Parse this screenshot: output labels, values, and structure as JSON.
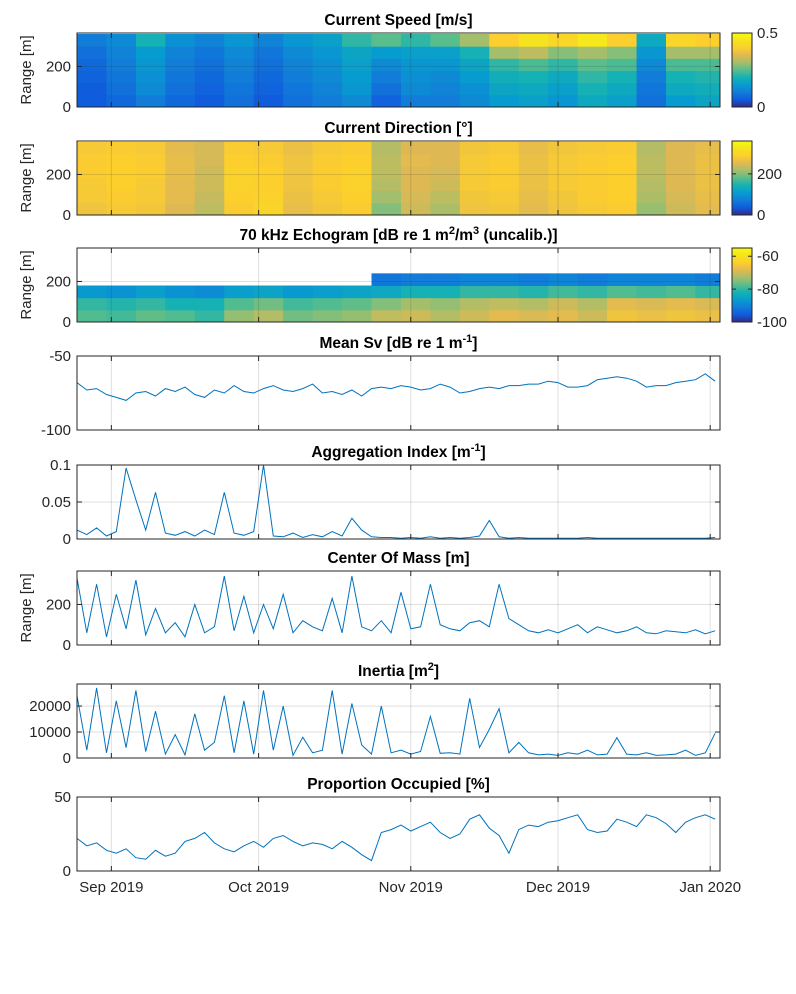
{
  "chart_data": {
    "type": "multi-panel time series",
    "xlim": [
      "2019-08-25",
      "2020-01-03"
    ],
    "xticks": [
      {
        "date": "2019-09-01",
        "label": "Sep 2019"
      },
      {
        "date": "2019-10-01",
        "label": "Oct 2019"
      },
      {
        "date": "2019-11-01",
        "label": "Nov 2019"
      },
      {
        "date": "2019-12-01",
        "label": "Dec 2019"
      },
      {
        "date": "2020-01-01",
        "label": "Jan 2020"
      }
    ],
    "line_color": "#0072bd",
    "colormap": "parula",
    "grid": true,
    "x_dates": [
      "2019-08-25",
      "2019-08-27",
      "2019-08-29",
      "2019-08-31",
      "2019-09-02",
      "2019-09-04",
      "2019-09-06",
      "2019-09-08",
      "2019-09-10",
      "2019-09-12",
      "2019-09-14",
      "2019-09-16",
      "2019-09-18",
      "2019-09-20",
      "2019-09-22",
      "2019-09-24",
      "2019-09-26",
      "2019-09-28",
      "2019-09-30",
      "2019-10-02",
      "2019-10-04",
      "2019-10-06",
      "2019-10-08",
      "2019-10-10",
      "2019-10-12",
      "2019-10-14",
      "2019-10-16",
      "2019-10-18",
      "2019-10-20",
      "2019-10-22",
      "2019-10-24",
      "2019-10-26",
      "2019-10-28",
      "2019-10-30",
      "2019-11-01",
      "2019-11-03",
      "2019-11-05",
      "2019-11-07",
      "2019-11-09",
      "2019-11-11",
      "2019-11-13",
      "2019-11-15",
      "2019-11-17",
      "2019-11-19",
      "2019-11-21",
      "2019-11-23",
      "2019-11-25",
      "2019-11-27",
      "2019-11-29",
      "2019-12-01",
      "2019-12-03",
      "2019-12-05",
      "2019-12-07",
      "2019-12-09",
      "2019-12-11",
      "2019-12-13",
      "2019-12-15",
      "2019-12-17",
      "2019-12-19",
      "2019-12-21",
      "2019-12-23",
      "2019-12-25",
      "2019-12-27",
      "2019-12-29",
      "2019-12-31",
      "2020-01-02"
    ],
    "heatmap_dates": [
      "2019-08-25",
      "2019-08-31",
      "2019-09-06",
      "2019-09-12",
      "2019-09-18",
      "2019-09-24",
      "2019-09-30",
      "2019-10-06",
      "2019-10-12",
      "2019-10-18",
      "2019-10-24",
      "2019-10-30",
      "2019-11-05",
      "2019-11-11",
      "2019-11-17",
      "2019-11-23",
      "2019-11-29",
      "2019-12-05",
      "2019-12-11",
      "2019-12-17",
      "2019-12-23",
      "2019-12-29"
    ],
    "range_bins": [
      30,
      90,
      150,
      210,
      270,
      330
    ],
    "panels": [
      {
        "type": "heatmap",
        "title": "Current Speed [m/s]",
        "ylabel": "Range [m]",
        "ylim": [
          0,
          365
        ],
        "yticks": [
          0,
          200
        ],
        "clim": [
          0,
          0.5
        ],
        "cticks": [
          0,
          0.5
        ],
        "ctick_labels": [
          "0",
          "0.5"
        ],
        "values": [
          [
            0.05,
            0.05,
            0.06,
            0.07,
            0.08,
            0.1
          ],
          [
            0.07,
            0.08,
            0.09,
            0.1,
            0.11,
            0.12
          ],
          [
            0.1,
            0.12,
            0.13,
            0.14,
            0.15,
            0.2
          ],
          [
            0.07,
            0.08,
            0.09,
            0.1,
            0.11,
            0.13
          ],
          [
            0.05,
            0.06,
            0.07,
            0.08,
            0.09,
            0.11
          ],
          [
            0.08,
            0.09,
            0.1,
            0.11,
            0.12,
            0.14
          ],
          [
            0.05,
            0.06,
            0.07,
            0.08,
            0.09,
            0.11
          ],
          [
            0.08,
            0.09,
            0.1,
            0.11,
            0.12,
            0.14
          ],
          [
            0.1,
            0.11,
            0.12,
            0.13,
            0.14,
            0.16
          ],
          [
            0.12,
            0.14,
            0.15,
            0.16,
            0.17,
            0.22
          ],
          [
            0.06,
            0.08,
            0.1,
            0.12,
            0.15,
            0.25
          ],
          [
            0.1,
            0.12,
            0.13,
            0.14,
            0.16,
            0.22
          ],
          [
            0.1,
            0.11,
            0.12,
            0.14,
            0.16,
            0.25
          ],
          [
            0.12,
            0.13,
            0.15,
            0.17,
            0.2,
            0.3
          ],
          [
            0.15,
            0.17,
            0.19,
            0.22,
            0.3,
            0.4
          ],
          [
            0.16,
            0.18,
            0.2,
            0.24,
            0.32,
            0.45
          ],
          [
            0.14,
            0.16,
            0.18,
            0.22,
            0.28,
            0.42
          ],
          [
            0.18,
            0.2,
            0.22,
            0.25,
            0.3,
            0.46
          ],
          [
            0.16,
            0.18,
            0.2,
            0.24,
            0.28,
            0.4
          ],
          [
            0.08,
            0.09,
            0.1,
            0.12,
            0.14,
            0.18
          ],
          [
            0.15,
            0.18,
            0.2,
            0.24,
            0.3,
            0.42
          ],
          [
            0.17,
            0.19,
            0.21,
            0.24,
            0.3,
            0.4
          ]
        ]
      },
      {
        "type": "heatmap",
        "title": "Current Direction [°]",
        "ylabel": "Range [m]",
        "ylim": [
          0,
          365
        ],
        "yticks": [
          0,
          200
        ],
        "clim": [
          0,
          360
        ],
        "cticks": [
          0,
          200
        ],
        "ctick_labels": [
          "0",
          "200"
        ],
        "values": [
          [
            270,
            280,
            280,
            285,
            285,
            280
          ],
          [
            280,
            285,
            290,
            290,
            290,
            285
          ],
          [
            275,
            280,
            280,
            285,
            285,
            280
          ],
          [
            250,
            255,
            255,
            260,
            260,
            255
          ],
          [
            230,
            235,
            240,
            240,
            245,
            245
          ],
          [
            285,
            290,
            295,
            295,
            290,
            285
          ],
          [
            300,
            295,
            290,
            290,
            285,
            280
          ],
          [
            260,
            265,
            270,
            270,
            270,
            265
          ],
          [
            275,
            280,
            285,
            285,
            285,
            280
          ],
          [
            285,
            290,
            295,
            295,
            290,
            285
          ],
          [
            200,
            215,
            225,
            230,
            230,
            225
          ],
          [
            240,
            245,
            250,
            250,
            255,
            250
          ],
          [
            220,
            230,
            240,
            245,
            250,
            250
          ],
          [
            270,
            275,
            280,
            280,
            280,
            275
          ],
          [
            275,
            280,
            285,
            285,
            285,
            280
          ],
          [
            255,
            260,
            265,
            265,
            265,
            260
          ],
          [
            270,
            275,
            280,
            280,
            280,
            275
          ],
          [
            280,
            285,
            285,
            285,
            285,
            280
          ],
          [
            285,
            290,
            290,
            290,
            290,
            285
          ],
          [
            210,
            220,
            225,
            230,
            230,
            225
          ],
          [
            240,
            245,
            250,
            250,
            250,
            250
          ],
          [
            255,
            260,
            265,
            265,
            265,
            260
          ]
        ]
      },
      {
        "type": "heatmap",
        "title": "70 kHz Echogram [dB re 1 m^{2}/m^{3} (uncalib.)]",
        "ylabel": "Range [m]",
        "ylim": [
          0,
          365
        ],
        "yticks": [
          0,
          200
        ],
        "clim": [
          -100,
          -55
        ],
        "cticks": [
          -100,
          -80,
          -60
        ],
        "ctick_labels": [
          "-100",
          "-80",
          "-60"
        ],
        "values": [
          [
            -78,
            -80,
            -87,
            null,
            null,
            null
          ],
          [
            -79,
            -81,
            -88,
            null,
            null,
            null
          ],
          [
            -77,
            -80,
            -86,
            null,
            null,
            null
          ],
          [
            -78,
            -82,
            -88,
            null,
            null,
            null
          ],
          [
            -80,
            -82,
            -89,
            null,
            null,
            null
          ],
          [
            -74,
            -78,
            -86,
            null,
            null,
            null
          ],
          [
            -72,
            -76,
            -85,
            null,
            null,
            null
          ],
          [
            -76,
            -79,
            -87,
            null,
            null,
            null
          ],
          [
            -75,
            -78,
            -86,
            null,
            null,
            null
          ],
          [
            -74,
            -77,
            -85,
            null,
            null,
            null
          ],
          [
            -71,
            -75,
            -84,
            -92,
            null,
            null
          ],
          [
            -70,
            -73,
            -82,
            -91,
            null,
            null
          ],
          [
            -72,
            -74,
            -82,
            -91,
            null,
            null
          ],
          [
            -70,
            -72,
            -80,
            -90,
            null,
            null
          ],
          [
            -68,
            -71,
            -80,
            -90,
            null,
            null
          ],
          [
            -69,
            -72,
            -81,
            -91,
            null,
            null
          ],
          [
            -68,
            -70,
            -79,
            -90,
            null,
            null
          ],
          [
            -70,
            -72,
            -80,
            -91,
            null,
            null
          ],
          [
            -66,
            -68,
            -78,
            -90,
            null,
            null
          ],
          [
            -67,
            -69,
            -79,
            -90,
            null,
            null
          ],
          [
            -66,
            -68,
            -78,
            -90,
            null,
            null
          ],
          [
            -67,
            -69,
            -80,
            -91,
            null,
            null
          ]
        ]
      },
      {
        "type": "line",
        "title": "Mean Sv [dB re 1 m^{-1}]",
        "ylabel": "",
        "ylim": [
          -100,
          -50
        ],
        "yticks": [
          -100,
          -50
        ],
        "ytick_labels": [
          "-100",
          "-50"
        ],
        "values": [
          -68,
          -73,
          -72,
          -76,
          -78,
          -80,
          -75,
          -74,
          -77,
          -72,
          -74,
          -71,
          -76,
          -78,
          -73,
          -75,
          -70,
          -74,
          -75,
          -72,
          -70,
          -73,
          -74,
          -72,
          -69,
          -75,
          -74,
          -76,
          -73,
          -77,
          -72,
          -71,
          -72,
          -70,
          -71,
          -73,
          -72,
          -69,
          -71,
          -75,
          -74,
          -72,
          -71,
          -72,
          -70,
          -70,
          -69,
          -69,
          -67,
          -68,
          -71,
          -71,
          -70,
          -66,
          -65,
          -64,
          -65,
          -67,
          -71,
          -70,
          -70,
          -68,
          -67,
          -66,
          -62,
          -67
        ]
      },
      {
        "type": "line",
        "title": "Aggregation Index [m^{-1}]",
        "ylabel": "",
        "ylim": [
          0,
          0.1
        ],
        "yticks": [
          0,
          0.05,
          0.1
        ],
        "ytick_labels": [
          "0",
          "0.05",
          "0.1"
        ],
        "values": [
          0.012,
          0.006,
          0.015,
          0.004,
          0.01,
          0.096,
          0.053,
          0.012,
          0.063,
          0.008,
          0.005,
          0.01,
          0.004,
          0.012,
          0.006,
          0.063,
          0.008,
          0.005,
          0.01,
          0.1,
          0.004,
          0.003,
          0.008,
          0.002,
          0.006,
          0.003,
          0.01,
          0.004,
          0.028,
          0.012,
          0.003,
          0.002,
          0.002,
          0.001,
          0.002,
          0.001,
          0.003,
          0.001,
          0.002,
          0.001,
          0.002,
          0.004,
          0.025,
          0.003,
          0.001,
          0.002,
          0.001,
          0.001,
          0.001,
          0.001,
          0.001,
          0.001,
          0.002,
          0.001,
          0.001,
          0.001,
          0.001,
          0.001,
          0.001,
          0.001,
          0.001,
          0.001,
          0.001,
          0.001,
          0.001,
          0.002
        ]
      },
      {
        "type": "line",
        "title": "Center Of Mass [m]",
        "ylabel": "Range [m]",
        "ylim": [
          0,
          365
        ],
        "yticks": [
          0,
          200
        ],
        "ytick_labels": [
          "0",
          "200"
        ],
        "values": [
          330,
          60,
          300,
          40,
          250,
          80,
          320,
          50,
          180,
          60,
          110,
          40,
          200,
          60,
          90,
          340,
          70,
          240,
          60,
          200,
          80,
          250,
          60,
          120,
          90,
          70,
          230,
          60,
          340,
          90,
          70,
          120,
          60,
          260,
          80,
          90,
          300,
          100,
          80,
          70,
          110,
          120,
          90,
          300,
          130,
          100,
          70,
          60,
          75,
          60,
          80,
          100,
          60,
          90,
          75,
          60,
          70,
          90,
          60,
          55,
          70,
          65,
          60,
          75,
          55,
          70
        ]
      },
      {
        "type": "line",
        "title": "Inertia [m^{2}]",
        "ylabel": "",
        "ylim": [
          0,
          28500
        ],
        "yticks": [
          0,
          10000,
          20000
        ],
        "ytick_labels": [
          "0",
          "10000",
          "20000"
        ],
        "values": [
          24000,
          3000,
          27000,
          2000,
          22000,
          4000,
          26000,
          2500,
          18000,
          1500,
          9000,
          1200,
          17000,
          3000,
          6000,
          24000,
          2000,
          22000,
          1500,
          26000,
          3000,
          20000,
          1000,
          8000,
          2000,
          3000,
          26000,
          1500,
          21000,
          5000,
          1500,
          20000,
          2000,
          3000,
          1500,
          2500,
          16000,
          1800,
          2000,
          1500,
          23000,
          4000,
          11000,
          19000,
          2000,
          6000,
          2000,
          1200,
          1500,
          1000,
          2000,
          1500,
          3000,
          1200,
          1500,
          7800,
          1500,
          1200,
          2000,
          1000,
          1200,
          1500,
          3000,
          1000,
          2000,
          9500
        ]
      },
      {
        "type": "line",
        "title": "Proportion Occupied [%]",
        "ylabel": "",
        "ylim": [
          0,
          50
        ],
        "yticks": [
          0,
          50
        ],
        "ytick_labels": [
          "0",
          "50"
        ],
        "values": [
          22,
          17,
          19,
          14,
          12,
          15,
          9,
          8,
          14,
          10,
          12,
          20,
          22,
          26,
          19,
          15,
          13,
          17,
          20,
          16,
          22,
          24,
          20,
          17,
          19,
          18,
          15,
          20,
          16,
          11,
          7,
          26,
          28,
          31,
          27,
          30,
          33,
          26,
          22,
          25,
          35,
          38,
          29,
          24,
          12,
          28,
          31,
          30,
          33,
          34,
          36,
          38,
          28,
          26,
          27,
          35,
          33,
          30,
          38,
          36,
          32,
          26,
          33,
          36,
          38,
          35
        ],
        "show_xtick_labels": true
      }
    ]
  }
}
